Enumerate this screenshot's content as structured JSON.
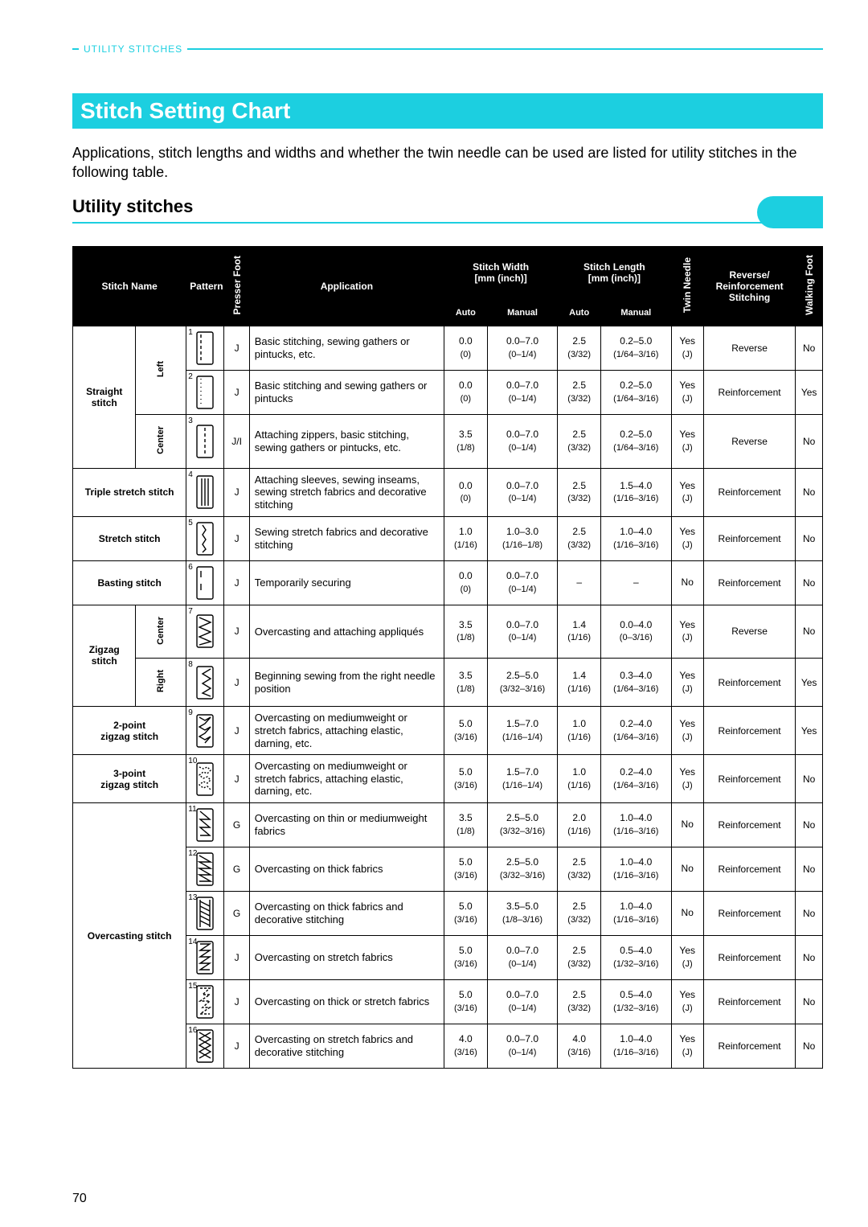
{
  "breadcrumb": "UTILITY STITCHES",
  "title": "Stitch Setting Chart",
  "intro": "Applications, stitch lengths and widths and whether the twin needle can be used are listed for utility stitches in the following table.",
  "subhead": "Utility stitches",
  "pageNumber": "70",
  "colors": {
    "accent": "#1ccfe0",
    "header_bg": "#000000",
    "header_fg": "#ffffff",
    "text": "#000000",
    "page_bg": "#ffffff"
  },
  "headers": {
    "stitchName": "Stitch Name",
    "pattern": "Pattern",
    "presserFoot": "Presser Foot",
    "application": "Application",
    "width": "Stitch Width\n[mm (inch)]",
    "length": "Stitch Length\n[mm (inch)]",
    "auto": "Auto",
    "manual": "Manual",
    "twinNeedle": "Twin Needle",
    "reverse": "Reverse/\nReinforcement\nStitching",
    "walkingFoot": "Walking Foot"
  },
  "groups": [
    {
      "name": "Straight stitch",
      "sub": [
        "Left",
        "Left",
        "Center"
      ],
      "span": 3
    },
    {
      "name": "Triple stretch stitch",
      "span": 1
    },
    {
      "name": "Stretch stitch",
      "span": 1
    },
    {
      "name": "Basting stitch",
      "span": 1
    },
    {
      "name": "Zigzag stitch",
      "sub": [
        "Center",
        "Right"
      ],
      "span": 2
    },
    {
      "name": "2-point zigzag stitch",
      "span": 1
    },
    {
      "name": "3-point zigzag stitch",
      "span": 1
    },
    {
      "name": "Overcasting stitch",
      "span": 6
    }
  ],
  "rows": [
    {
      "num": "1",
      "pf": "J",
      "app": "Basic stitching, sewing gathers or pintucks, etc.",
      "wa": "0.0",
      "wa2": "(0)",
      "wm": "0.0–7.0",
      "wm2": "(0–1/4)",
      "la": "2.5",
      "la2": "(3/32)",
      "lm": "0.2–5.0",
      "lm2": "(1/64–3/16)",
      "tn": "Yes",
      "tn2": "(J)",
      "rev": "Reverse",
      "wf": "No",
      "icon": "straight-left"
    },
    {
      "num": "2",
      "pf": "J",
      "app": "Basic stitching and sewing gathers or pintucks",
      "wa": "0.0",
      "wa2": "(0)",
      "wm": "0.0–7.0",
      "wm2": "(0–1/4)",
      "la": "2.5",
      "la2": "(3/32)",
      "lm": "0.2–5.0",
      "lm2": "(1/64–3/16)",
      "tn": "Yes",
      "tn2": "(J)",
      "rev": "Reinforcement",
      "wf": "Yes",
      "icon": "straight-left-dots"
    },
    {
      "num": "3",
      "pf": "J/I",
      "app": "Attaching zippers, basic stitching, sewing gathers or pintucks, etc.",
      "wa": "3.5",
      "wa2": "(1/8)",
      "wm": "0.0–7.0",
      "wm2": "(0–1/4)",
      "la": "2.5",
      "la2": "(3/32)",
      "lm": "0.2–5.0",
      "lm2": "(1/64–3/16)",
      "tn": "Yes",
      "tn2": "(J)",
      "rev": "Reverse",
      "wf": "No",
      "icon": "straight-center"
    },
    {
      "num": "4",
      "pf": "J",
      "app": "Attaching sleeves, sewing inseams, sewing stretch fabrics and decorative stitching",
      "wa": "0.0",
      "wa2": "(0)",
      "wm": "0.0–7.0",
      "wm2": "(0–1/4)",
      "la": "2.5",
      "la2": "(3/32)",
      "lm": "1.5–4.0",
      "lm2": "(1/16–3/16)",
      "tn": "Yes",
      "tn2": "(J)",
      "rev": "Reinforcement",
      "wf": "No",
      "icon": "triple"
    },
    {
      "num": "5",
      "pf": "J",
      "app": "Sewing stretch fabrics and decorative stitching",
      "wa": "1.0",
      "wa2": "(1/16)",
      "wm": "1.0–3.0",
      "wm2": "(1/16–1/8)",
      "la": "2.5",
      "la2": "(3/32)",
      "lm": "1.0–4.0",
      "lm2": "(1/16–3/16)",
      "tn": "Yes",
      "tn2": "(J)",
      "rev": "Reinforcement",
      "wf": "No",
      "icon": "stretch"
    },
    {
      "num": "6",
      "pf": "J",
      "app": "Temporarily securing",
      "wa": "0.0",
      "wa2": "(0)",
      "wm": "0.0–7.0",
      "wm2": "(0–1/4)",
      "la": "–",
      "la2": "",
      "lm": "–",
      "lm2": "",
      "tn": "No",
      "tn2": "",
      "rev": "Reinforcement",
      "wf": "No",
      "icon": "basting"
    },
    {
      "num": "7",
      "pf": "J",
      "app": "Overcasting and attaching appliqués",
      "wa": "3.5",
      "wa2": "(1/8)",
      "wm": "0.0–7.0",
      "wm2": "(0–1/4)",
      "la": "1.4",
      "la2": "(1/16)",
      "lm": "0.0–4.0",
      "lm2": "(0–3/16)",
      "tn": "Yes",
      "tn2": "(J)",
      "rev": "Reverse",
      "wf": "No",
      "icon": "zigzag"
    },
    {
      "num": "8",
      "pf": "J",
      "app": "Beginning sewing from the right needle position",
      "wa": "3.5",
      "wa2": "(1/8)",
      "wm": "2.5–5.0",
      "wm2": "(3/32–3/16)",
      "la": "1.4",
      "la2": "(1/16)",
      "lm": "0.3–4.0",
      "lm2": "(1/64–3/16)",
      "tn": "Yes",
      "tn2": "(J)",
      "rev": "Reinforcement",
      "wf": "Yes",
      "icon": "zigzag-right"
    },
    {
      "num": "9",
      "pf": "J",
      "app": "Overcasting on mediumweight or stretch fabrics, attaching elastic, darning, etc.",
      "wa": "5.0",
      "wa2": "(3/16)",
      "wm": "1.5–7.0",
      "wm2": "(1/16–1/4)",
      "la": "1.0",
      "la2": "(1/16)",
      "lm": "0.2–4.0",
      "lm2": "(1/64–3/16)",
      "tn": "Yes",
      "tn2": "(J)",
      "rev": "Reinforcement",
      "wf": "Yes",
      "icon": "zigzag2"
    },
    {
      "num": "10",
      "pf": "J",
      "app": "Overcasting on mediumweight or stretch fabrics, attaching elastic, darning, etc.",
      "wa": "5.0",
      "wa2": "(3/16)",
      "wm": "1.5–7.0",
      "wm2": "(1/16–1/4)",
      "la": "1.0",
      "la2": "(1/16)",
      "lm": "0.2–4.0",
      "lm2": "(1/64–3/16)",
      "tn": "Yes",
      "tn2": "(J)",
      "rev": "Reinforcement",
      "wf": "No",
      "icon": "zigzag3"
    },
    {
      "num": "11",
      "pf": "G",
      "app": "Overcasting on thin or mediumweight fabrics",
      "wa": "3.5",
      "wa2": "(1/8)",
      "wm": "2.5–5.0",
      "wm2": "(3/32–3/16)",
      "la": "2.0",
      "la2": "(1/16)",
      "lm": "1.0–4.0",
      "lm2": "(1/16–3/16)",
      "tn": "No",
      "tn2": "",
      "rev": "Reinforcement",
      "wf": "No",
      "icon": "over1"
    },
    {
      "num": "12",
      "pf": "G",
      "app": "Overcasting on thick fabrics",
      "wa": "5.0",
      "wa2": "(3/16)",
      "wm": "2.5–5.0",
      "wm2": "(3/32–3/16)",
      "la": "2.5",
      "la2": "(3/32)",
      "lm": "1.0–4.0",
      "lm2": "(1/16–3/16)",
      "tn": "No",
      "tn2": "",
      "rev": "Reinforcement",
      "wf": "No",
      "icon": "over2"
    },
    {
      "num": "13",
      "pf": "G",
      "app": "Overcasting on thick fabrics and decorative stitching",
      "wa": "5.0",
      "wa2": "(3/16)",
      "wm": "3.5–5.0",
      "wm2": "(1/8–3/16)",
      "la": "2.5",
      "la2": "(3/32)",
      "lm": "1.0–4.0",
      "lm2": "(1/16–3/16)",
      "tn": "No",
      "tn2": "",
      "rev": "Reinforcement",
      "wf": "No",
      "icon": "over3"
    },
    {
      "num": "14",
      "pf": "J",
      "app": "Overcasting on stretch fabrics",
      "wa": "5.0",
      "wa2": "(3/16)",
      "wm": "0.0–7.0",
      "wm2": "(0–1/4)",
      "la": "2.5",
      "la2": "(3/32)",
      "lm": "0.5–4.0",
      "lm2": "(1/32–3/16)",
      "tn": "Yes",
      "tn2": "(J)",
      "rev": "Reinforcement",
      "wf": "No",
      "icon": "over4"
    },
    {
      "num": "15",
      "pf": "J",
      "app": "Overcasting on thick or stretch fabrics",
      "wa": "5.0",
      "wa2": "(3/16)",
      "wm": "0.0–7.0",
      "wm2": "(0–1/4)",
      "la": "2.5",
      "la2": "(3/32)",
      "lm": "0.5–4.0",
      "lm2": "(1/32–3/16)",
      "tn": "Yes",
      "tn2": "(J)",
      "rev": "Reinforcement",
      "wf": "No",
      "icon": "over5"
    },
    {
      "num": "16",
      "pf": "J",
      "app": "Overcasting on stretch fabrics and decorative stitching",
      "wa": "4.0",
      "wa2": "(3/16)",
      "wm": "0.0–7.0",
      "wm2": "(0–1/4)",
      "la": "4.0",
      "la2": "(3/16)",
      "lm": "1.0–4.0",
      "lm2": "(1/16–3/16)",
      "tn": "Yes",
      "tn2": "(J)",
      "rev": "Reinforcement",
      "wf": "No",
      "icon": "over6"
    }
  ]
}
